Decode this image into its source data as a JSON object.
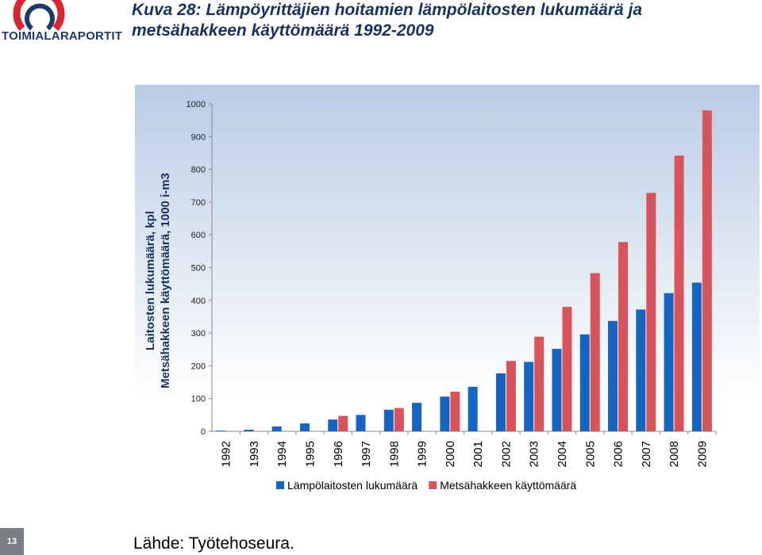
{
  "logo": {
    "text": "TOIMIALARAPORTIT"
  },
  "title": {
    "line1": "Kuva 28: Lämpöyrittäjien hoitamien lämpölaitosten lukumäärä ja",
    "line2": "metsähakkeen käyttömäärä 1992-2009"
  },
  "page_number": "13",
  "source": "Lähde: Työtehoseura.",
  "colors": {
    "series1": "#1565c0",
    "series2": "#d8545a",
    "plot_bg_top": "#b9cce5",
    "plot_bg_bottom": "#ffffff",
    "title": "#17325e"
  },
  "chart_data": {
    "type": "bar",
    "title": "Kuva 28: Lämpöyrittäjien hoitamien lämpölaitosten lukumäärä ja metsähakkeen käyttömäärä 1992-2009",
    "ylabel_lines": [
      "Laitosten lukumäärä, kpl",
      "Metsähakkeen käyttömäärä, 1000 i-m3"
    ],
    "xlabel": "",
    "ylim": [
      0,
      1000
    ],
    "yticks": [
      0,
      100,
      200,
      300,
      400,
      500,
      600,
      700,
      800,
      900,
      1000
    ],
    "categories": [
      "1992",
      "1993",
      "1994",
      "1995",
      "1996",
      "1997",
      "1998",
      "1999",
      "2000",
      "2001",
      "2002",
      "2003",
      "2004",
      "2005",
      "2006",
      "2007",
      "2008",
      "2009"
    ],
    "series": [
      {
        "name": "Lämpölaitosten lukumäärä",
        "values": [
          2,
          5,
          15,
          24,
          36,
          50,
          66,
          87,
          106,
          136,
          177,
          212,
          252,
          296,
          337,
          372,
          422,
          454
        ]
      },
      {
        "name": "Metsähakkeen käyttömäärä",
        "values": [
          null,
          null,
          null,
          null,
          47,
          null,
          71,
          null,
          121,
          null,
          215,
          289,
          380,
          483,
          578,
          728,
          842,
          980
        ]
      }
    ],
    "legend_position": "bottom",
    "grid": false
  }
}
